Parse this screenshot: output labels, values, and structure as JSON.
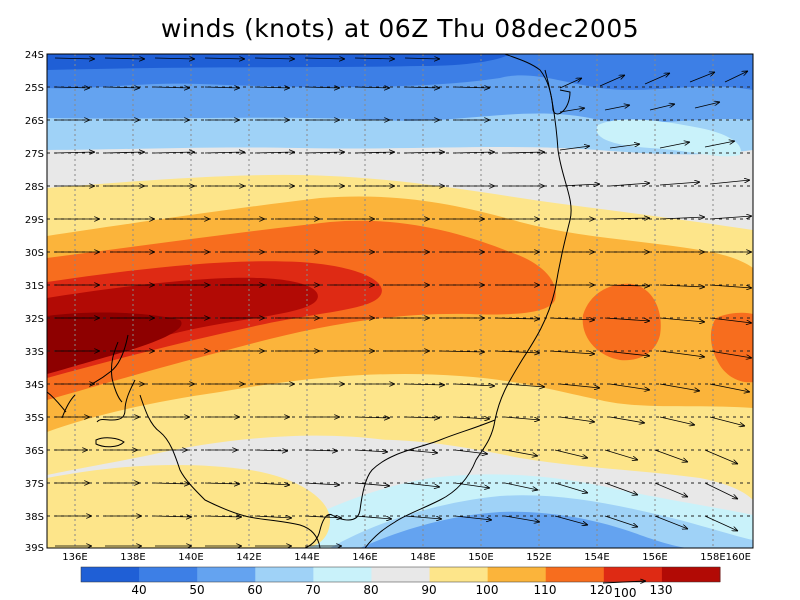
{
  "title": "winds (knots) at 06Z Thu 08dec2005",
  "map": {
    "lat_labels": [
      "24S",
      "25S",
      "26S",
      "27S",
      "28S",
      "29S",
      "30S",
      "31S",
      "32S",
      "33S",
      "34S",
      "35S",
      "36S",
      "37S",
      "38S",
      "39S"
    ],
    "lon_labels": [
      "136E",
      "138E",
      "140E",
      "142E",
      "144E",
      "146E",
      "148E",
      "150E",
      "152E",
      "154E",
      "156E",
      "158E",
      "160E"
    ]
  },
  "colorbar": {
    "bins": [
      {
        "color": "#1f5fd6"
      },
      {
        "color": "#3d7fe6"
      },
      {
        "color": "#64a3f0"
      },
      {
        "color": "#9fd2f7"
      },
      {
        "color": "#c9f2fa"
      },
      {
        "color": "#e8e8e8"
      },
      {
        "color": "#fde58a"
      },
      {
        "color": "#fbb43b"
      },
      {
        "color": "#f76d1e"
      },
      {
        "color": "#de2a14"
      },
      {
        "color": "#b20a05"
      }
    ],
    "labels": [
      "40",
      "50",
      "60",
      "70",
      "80",
      "90",
      "100",
      "110",
      "120",
      "130"
    ],
    "reference_vector_label": "100"
  },
  "colors": {
    "contour_cool_1": "#3d7fe6",
    "contour_cool_2": "#64a3f0",
    "contour_cool_3": "#9fd2f7",
    "contour_cool_4": "#c9f2fa",
    "contour_neutral": "#e8e8e8",
    "contour_warm_1": "#fde58a",
    "contour_warm_2": "#fbb43b",
    "contour_warm_3": "#f76d1e",
    "contour_warm_4": "#de2a14",
    "contour_warm_5": "#b20a05",
    "contour_warm_6": "#8e0000"
  }
}
